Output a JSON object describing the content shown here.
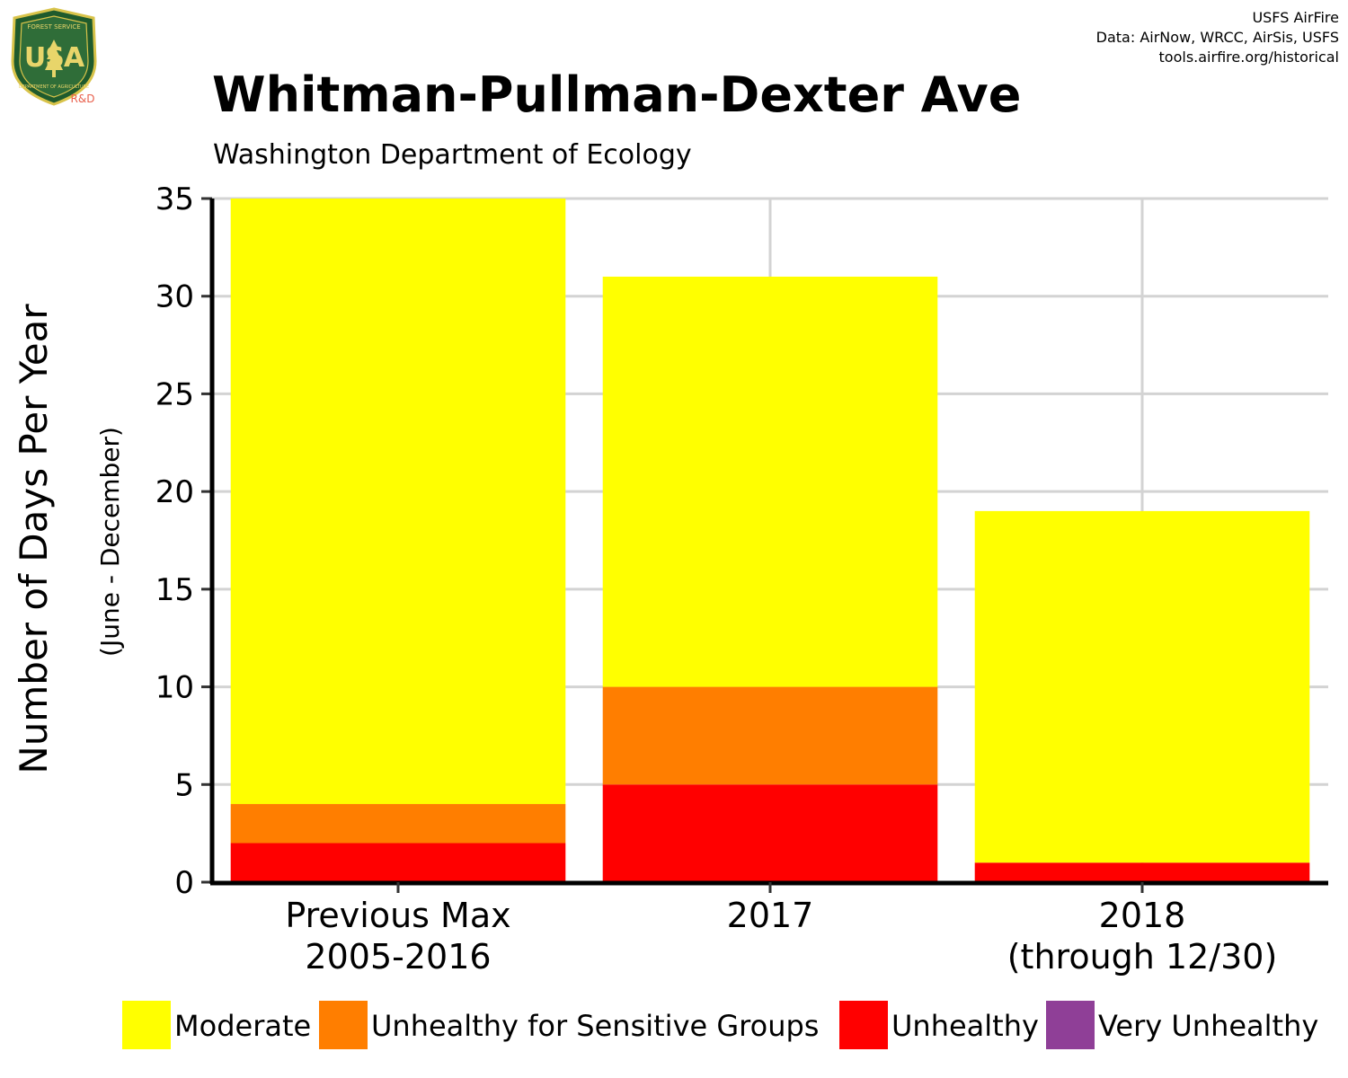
{
  "header": {
    "title": "Whitman-Pullman-Dexter Ave",
    "subtitle": "Washington Department of Ecology",
    "credits": [
      "USFS AirFire",
      "Data: AirNow, WRCC, AirSis, USFS",
      "tools.airfire.org/historical"
    ]
  },
  "logo": {
    "top_text": "FOREST SERVICE",
    "letters": "USA",
    "bottom_text": "DEPARTMENT OF AGRICULTURE",
    "tag": "R&D"
  },
  "chart_data": {
    "type": "bar",
    "stacked": true,
    "categories": [
      [
        "Previous Max",
        "2005-2016"
      ],
      [
        "2017"
      ],
      [
        "2018",
        "(through 12/30)"
      ]
    ],
    "series": [
      {
        "name": "Unhealthy",
        "color": "#ff0000",
        "values": [
          2,
          5,
          1
        ]
      },
      {
        "name": "Unhealthy for Sensitive Groups",
        "color": "#ff7e00",
        "values": [
          2,
          5,
          0
        ]
      },
      {
        "name": "Moderate",
        "color": "#ffff00",
        "values": [
          31,
          21,
          18
        ]
      }
    ],
    "legend": [
      {
        "name": "Moderate",
        "color": "#ffff00"
      },
      {
        "name": "Unhealthy for Sensitive Groups",
        "color": "#ff7e00"
      },
      {
        "name": "Unhealthy",
        "color": "#ff0000"
      },
      {
        "name": "Very Unhealthy",
        "color": "#8f3f97"
      }
    ],
    "legend_position": "bottom",
    "ylabel": "Number of Days Per Year",
    "ylabel_sub": "(June - December)",
    "yticks": [
      0,
      5,
      10,
      15,
      20,
      25,
      30,
      35
    ],
    "ylim": [
      0,
      35
    ],
    "grid": true
  }
}
